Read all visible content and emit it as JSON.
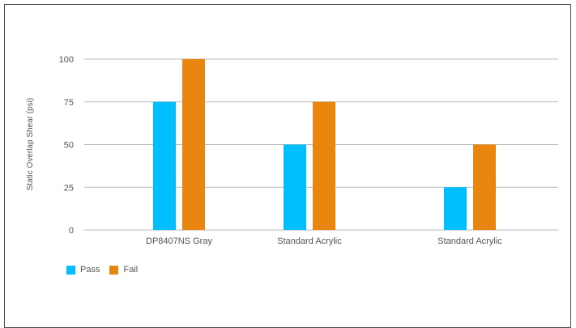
{
  "chart_data": {
    "type": "bar",
    "categories": [
      "DP8407NS Gray",
      "Standard Acrylic",
      "Standard Acrylic"
    ],
    "series": [
      {
        "name": "Pass",
        "values": [
          75,
          50,
          25
        ],
        "color": "#00bfff"
      },
      {
        "name": "Fail",
        "values": [
          100,
          75,
          50
        ],
        "color": "#e8860f"
      }
    ],
    "ylabel": "Static Overlap Shear (psi)",
    "xlabel": "",
    "ylim": [
      0,
      100
    ],
    "yticks": [
      0,
      25,
      50,
      75,
      100
    ],
    "grid": true,
    "legend_position": "bottom-left"
  }
}
